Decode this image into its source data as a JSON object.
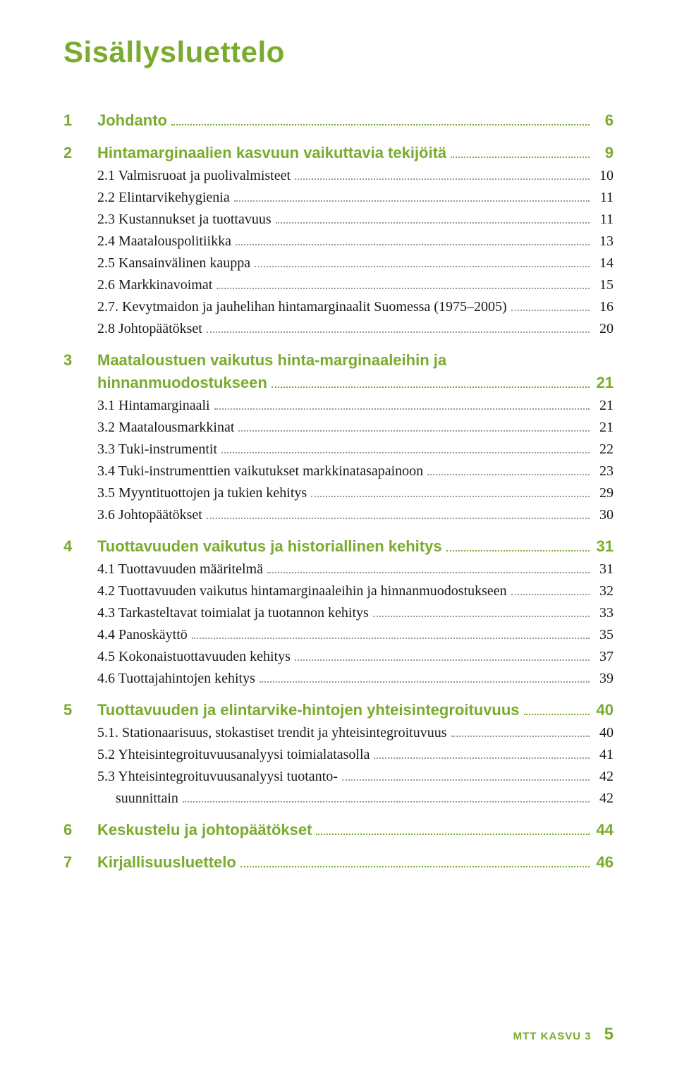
{
  "title": "Sisällysluettelo",
  "colors": {
    "accent": "#7aab2e",
    "text": "#1a1a1a",
    "background": "#ffffff",
    "leader_gray": "#999999"
  },
  "typography": {
    "title_fontsize": 42,
    "section_fontsize": 22,
    "sub_fontsize": 20,
    "section_font": "Arial",
    "sub_font": "Georgia"
  },
  "sections": [
    {
      "num": "1",
      "label": "Johdanto",
      "page": "6",
      "subs": []
    },
    {
      "num": "2",
      "label": "Hintamarginaalien kasvuun vaikuttavia tekijöitä",
      "page": "9",
      "subs": [
        {
          "label": "2.1 Valmisruoat ja puolivalmisteet",
          "page": "10"
        },
        {
          "label": "2.2 Elintarvikehygienia",
          "page": "11"
        },
        {
          "label": "2.3 Kustannukset ja tuottavuus",
          "page": "11"
        },
        {
          "label": "2.4 Maatalouspolitiikka",
          "page": "13"
        },
        {
          "label": "2.5 Kansainvälinen kauppa",
          "page": "14"
        },
        {
          "label": "2.6 Markkinavoimat",
          "page": "15"
        },
        {
          "label": "2.7. Kevytmaidon ja jauhelihan hintamarginaalit Suomessa (1975–2005)",
          "page": "16"
        },
        {
          "label": "2.8 Johtopäätökset",
          "page": "20"
        }
      ]
    },
    {
      "num": "3",
      "label_line1": "Maataloustuen vaikutus hinta-marginaaleihin ja",
      "label_line2": "hinnanmuodostukseen",
      "page": "21",
      "subs": [
        {
          "label": "3.1 Hintamarginaali",
          "page": "21"
        },
        {
          "label": "3.2 Maatalousmarkkinat",
          "page": "21"
        },
        {
          "label": "3.3 Tuki-instrumentit",
          "page": "22"
        },
        {
          "label": "3.4 Tuki-instrumenttien vaikutukset markkinatasapainoon",
          "page": "23"
        },
        {
          "label": "3.5 Myyntituottojen ja tukien kehitys",
          "page": "29"
        },
        {
          "label": "3.6 Johtopäätökset",
          "page": "30"
        }
      ]
    },
    {
      "num": "4",
      "label": "Tuottavuuden vaikutus ja historiallinen kehitys",
      "page": "31",
      "subs": [
        {
          "label": "4.1 Tuottavuuden määritelmä",
          "page": "31"
        },
        {
          "label": "4.2 Tuottavuuden vaikutus hintamarginaaleihin ja hinnanmuodostukseen",
          "page": "32"
        },
        {
          "label": "4.3 Tarkasteltavat toimialat ja tuotannon kehitys",
          "page": "33"
        },
        {
          "label": "4.4 Panoskäyttö",
          "page": "35"
        },
        {
          "label": "4.5 Kokonaistuottavuuden kehitys",
          "page": "37"
        },
        {
          "label": "4.6 Tuottajahintojen kehitys",
          "page": "39"
        }
      ]
    },
    {
      "num": "5",
      "label": "Tuottavuuden ja elintarvike-hintojen yhteisintegroituvuus",
      "page": "40",
      "subs": [
        {
          "label": "5.1. Stationaarisuus, stokastiset trendit ja yhteisintegroituvuus",
          "page": "40"
        },
        {
          "label": "5.2 Yhteisintegroituvuusanalyysi toimialatasolla",
          "page": "41"
        },
        {
          "label": "5.3 Yhteisintegroituvuusanalyysi tuotanto-",
          "page": "42"
        },
        {
          "label_cont": "suunnittain",
          "page": "42"
        }
      ]
    },
    {
      "num": "6",
      "label": "Keskustelu ja johtopäätökset",
      "page": "44",
      "subs": []
    },
    {
      "num": "7",
      "label": "Kirjallisuusluettelo",
      "page": "46",
      "subs": []
    }
  ],
  "footer": {
    "brand": "MTT KASVU 3",
    "page_number": "5"
  }
}
